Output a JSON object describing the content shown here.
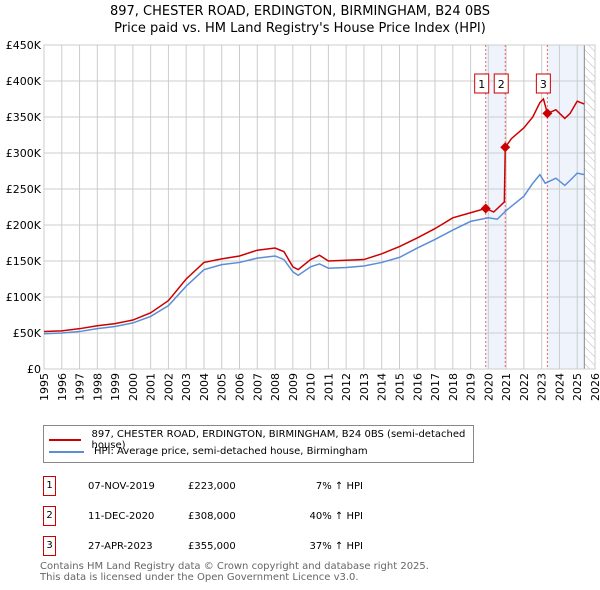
{
  "title": "897, CHESTER ROAD, ERDINGTON, BIRMINGHAM, B24 0BS",
  "subtitle": "Price paid vs. HM Land Registry's House Price Index (HPI)",
  "chart_data": {
    "type": "line",
    "xlim": [
      1995,
      2026
    ],
    "ylim": [
      0,
      450000
    ],
    "x_ticks": [
      "1995",
      "1996",
      "1997",
      "1998",
      "1999",
      "2000",
      "2001",
      "2002",
      "2003",
      "2004",
      "2005",
      "2006",
      "2007",
      "2008",
      "2009",
      "2010",
      "2011",
      "2012",
      "2013",
      "2014",
      "2015",
      "2016",
      "2017",
      "2018",
      "2019",
      "2020",
      "2021",
      "2022",
      "2023",
      "2024",
      "2025",
      "2026"
    ],
    "y_ticks": [
      {
        "v": 0,
        "l": "£0"
      },
      {
        "v": 50000,
        "l": "£50K"
      },
      {
        "v": 100000,
        "l": "£100K"
      },
      {
        "v": 150000,
        "l": "£150K"
      },
      {
        "v": 200000,
        "l": "£200K"
      },
      {
        "v": 250000,
        "l": "£250K"
      },
      {
        "v": 300000,
        "l": "£300K"
      },
      {
        "v": 350000,
        "l": "£350K"
      },
      {
        "v": 400000,
        "l": "£400K"
      },
      {
        "v": 450000,
        "l": "£450K"
      }
    ],
    "grid": true,
    "series": [
      {
        "name": "897, CHESTER ROAD, ERDINGTON, BIRMINGHAM, B24 0BS (semi-detached house)",
        "color": "#cc0000",
        "x": [
          1995,
          1996,
          1997,
          1998,
          1999,
          2000,
          2001,
          2002,
          2003,
          2004,
          2005,
          2006,
          2007,
          2008,
          2008.5,
          2009,
          2009.3,
          2010,
          2010.5,
          2011,
          2012,
          2013,
          2014,
          2015,
          2016,
          2017,
          2018,
          2019,
          2019.85,
          2020.3,
          2020.9,
          2020.95,
          2021.3,
          2022,
          2022.5,
          2022.9,
          2023.1,
          2023.32,
          2023.8,
          2024.3,
          2024.6,
          2025,
          2025.4
        ],
        "y": [
          52000,
          53000,
          56000,
          60000,
          63000,
          68000,
          78000,
          95000,
          125000,
          148000,
          153000,
          157000,
          165000,
          168000,
          163000,
          142000,
          138000,
          152000,
          158000,
          150000,
          151000,
          152000,
          160000,
          170000,
          182000,
          195000,
          210000,
          217000,
          223000,
          218000,
          232000,
          308000,
          320000,
          335000,
          350000,
          370000,
          375000,
          355000,
          360000,
          348000,
          355000,
          372000,
          368000
        ]
      },
      {
        "name": "HPI: Average price, semi-detached house, Birmingham",
        "color": "#5b8ed6",
        "x": [
          1995,
          1996,
          1997,
          1998,
          1999,
          2000,
          2001,
          2002,
          2003,
          2004,
          2005,
          2006,
          2007,
          2008,
          2008.5,
          2009,
          2009.3,
          2010,
          2010.5,
          2011,
          2012,
          2013,
          2014,
          2015,
          2016,
          2017,
          2018,
          2019,
          2020,
          2020.5,
          2021,
          2022,
          2022.5,
          2022.9,
          2023.2,
          2023.8,
          2024.3,
          2024.6,
          2025,
          2025.4
        ],
        "y": [
          49000,
          50000,
          52000,
          56000,
          59000,
          64000,
          73000,
          88000,
          115000,
          138000,
          145000,
          148000,
          154000,
          157000,
          152000,
          135000,
          130000,
          142000,
          146000,
          140000,
          141000,
          143000,
          148000,
          155000,
          168000,
          180000,
          193000,
          205000,
          210000,
          208000,
          220000,
          240000,
          258000,
          270000,
          258000,
          265000,
          255000,
          262000,
          272000,
          270000
        ]
      }
    ],
    "sales": [
      {
        "n": "1",
        "x": 2019.85,
        "y": 223000,
        "date": "07-NOV-2019",
        "price": "£223,000",
        "hpi": "7% ↑ HPI"
      },
      {
        "n": "2",
        "x": 2020.95,
        "y": 308000,
        "date": "11-DEC-2020",
        "price": "£308,000",
        "hpi": "40% ↑ HPI"
      },
      {
        "n": "3",
        "x": 2023.32,
        "y": 355000,
        "date": "27-APR-2023",
        "price": "£355,000",
        "hpi": "37% ↑ HPI"
      }
    ],
    "shaded_ranges": [
      [
        2019.85,
        2020.95
      ],
      [
        2023.32,
        2025.4
      ]
    ],
    "forecast_hatch_from": 2025.4
  },
  "legend": {
    "red": "897, CHESTER ROAD, ERDINGTON, BIRMINGHAM, B24 0BS (semi-detached house)",
    "blue": "HPI: Average price, semi-detached house, Birmingham"
  },
  "footer": {
    "line1": "Contains HM Land Registry data © Crown copyright and database right 2025.",
    "line2": "This data is licensed under the Open Government Licence v3.0."
  }
}
